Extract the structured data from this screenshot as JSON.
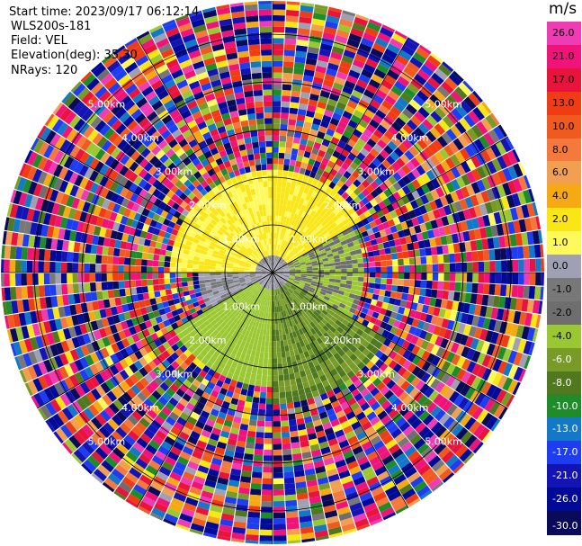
{
  "header": {
    "start_time": "Start time: 2023/09/17 06:12:14",
    "instrument": "WLS200s-181",
    "field": "Field: VEL",
    "elevation": "Elevation(deg): 35.30",
    "nrays": "NRays: 120"
  },
  "colorbar": {
    "unit": "m/s",
    "labels": [
      "26.0",
      "21.0",
      "17.0",
      "13.0",
      "10.0",
      "8.0",
      "6.0",
      "4.0",
      "2.0",
      "1.0",
      "0.0",
      "-1.0",
      "-2.0",
      "-4.0",
      "-6.0",
      "-8.0",
      "-10.0",
      "-13.0",
      "-17.0",
      "-21.0",
      "-26.0",
      "-30.0"
    ],
    "colors": [
      "#f03cb4",
      "#f0147a",
      "#e8143c",
      "#f03c14",
      "#f05a1e",
      "#f5783c",
      "#f0a050",
      "#f5aa14",
      "#fae614",
      "#fffa5a",
      "#a0a0b4",
      "#787878",
      "#6e6e6e",
      "#9bc832",
      "#789b28",
      "#50781e",
      "#1e8c28",
      "#1478c8",
      "#1e3cf0",
      "#1414b4",
      "#000a96",
      "#0a0a5a"
    ]
  },
  "chart_data": {
    "type": "polar_ppi",
    "field": "VEL",
    "units": "m/s",
    "nrays": 120,
    "range_rings": [
      {
        "label": "1.00km",
        "range_km": 1.0
      },
      {
        "label": "2.00km",
        "range_km": 2.0
      },
      {
        "label": "3.00km",
        "range_km": 3.0
      },
      {
        "label": "4.00km",
        "range_km": 4.0
      },
      {
        "label": "5.00km",
        "range_km": 5.0
      }
    ],
    "max_range_km": 5.7,
    "color_levels": [
      -30,
      -26,
      -21,
      -17,
      -13,
      -10,
      -8,
      -6,
      -4,
      -2,
      -1,
      0,
      1,
      2,
      4,
      6,
      8,
      10,
      13,
      17,
      21,
      26
    ],
    "sectors": [
      {
        "azimuth_from_deg": 270,
        "azimuth_to_deg": 360,
        "max_range_km": 2.2,
        "velocity_m_s": 2.0,
        "note": "positive velocities, yellow"
      },
      {
        "azimuth_from_deg": 0,
        "azimuth_to_deg": 60,
        "max_range_km": 2.2,
        "velocity_m_s": 2.5,
        "note": "positive velocities, yellow"
      },
      {
        "azimuth_from_deg": 60,
        "azimuth_to_deg": 120,
        "max_range_km": 2.0,
        "velocity_m_s": -2.0,
        "note": "light green"
      },
      {
        "azimuth_from_deg": 120,
        "azimuth_to_deg": 180,
        "max_range_km": 2.8,
        "velocity_m_s": -6.0,
        "note": "dark green"
      },
      {
        "azimuth_from_deg": 180,
        "azimuth_to_deg": 240,
        "max_range_km": 2.4,
        "velocity_m_s": -3.0,
        "note": "olive green"
      },
      {
        "azimuth_from_deg": 240,
        "azimuth_to_deg": 270,
        "max_range_km": 1.6,
        "velocity_m_s": 0.0,
        "note": "grey near zero"
      }
    ],
    "noise_beyond_signal": true,
    "grid": true
  }
}
